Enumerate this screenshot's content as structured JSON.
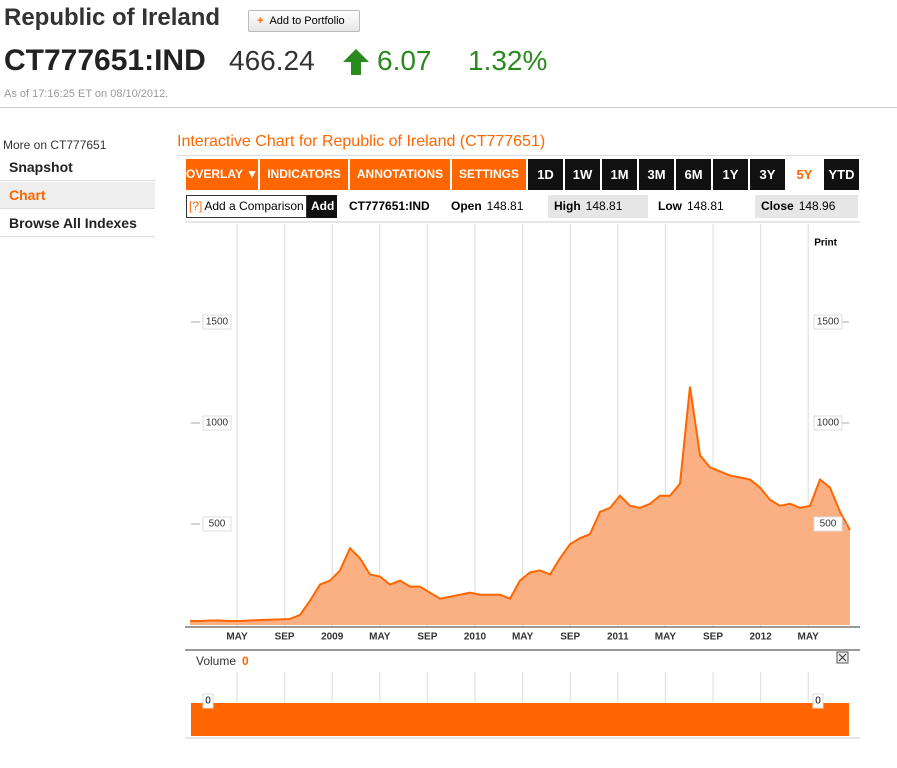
{
  "header": {
    "title": "Republic of Ireland",
    "add_button": "Add to Portfolio",
    "symbol": "CT777651:IND",
    "price": "466.24",
    "change": "6.07",
    "change_pct": "1.32%",
    "timestamp": "As of 17:16:25 ET on 08/10/2012."
  },
  "sidebar": {
    "heading": "More on CT777651",
    "links": [
      "Snapshot",
      "Chart",
      "Browse All Indexes"
    ],
    "active_link": "Chart"
  },
  "toolbar": {
    "menus": [
      "OVERLAY ▼",
      "INDICATORS ▼",
      "ANNOTATIONS ▼",
      "SETTINGS ▼"
    ],
    "ranges": [
      "1D",
      "1W",
      "1M",
      "3M",
      "6M",
      "1Y",
      "3Y",
      "5Y",
      "YTD"
    ],
    "active_range": "5Y"
  },
  "quote_bar": {
    "compare_help": "[?]",
    "compare_placeholder": "Add a Comparison",
    "add": "Add",
    "symbol": "CT777651:IND",
    "fields": [
      {
        "label": "Open",
        "value": "148.81"
      },
      {
        "label": "High",
        "value": "148.81"
      },
      {
        "label": "Low",
        "value": "148.81"
      },
      {
        "label": "Close",
        "value": "148.96"
      }
    ]
  },
  "chart_data": {
    "type": "area",
    "title": "Interactive Chart for Republic of Ireland (CT777651)",
    "print": "Print",
    "color": "#ff6600",
    "fill_color": "#fbb084",
    "values": [
      20,
      20,
      22,
      22,
      20,
      20,
      22,
      25,
      26,
      28,
      30,
      50,
      120,
      200,
      220,
      270,
      380,
      330,
      250,
      240,
      200,
      220,
      190,
      190,
      160,
      130,
      140,
      150,
      160,
      150,
      150,
      150,
      130,
      220,
      260,
      270,
      250,
      330,
      400,
      430,
      450,
      560,
      580,
      640,
      590,
      580,
      600,
      640,
      640,
      700,
      1180,
      840,
      780,
      760,
      740,
      730,
      720,
      680,
      620,
      590,
      600,
      580,
      590,
      720,
      680,
      560,
      470
    ],
    "ylim": [
      0,
      2000
    ],
    "yticks": [
      500,
      1000,
      1500
    ],
    "x_labels": [
      "MAY",
      "SEP",
      "2009",
      "MAY",
      "SEP",
      "2010",
      "MAY",
      "SEP",
      "2011",
      "MAY",
      "SEP",
      "2012",
      "MAY"
    ],
    "volume": {
      "label": "Volume",
      "value": 0
    }
  }
}
